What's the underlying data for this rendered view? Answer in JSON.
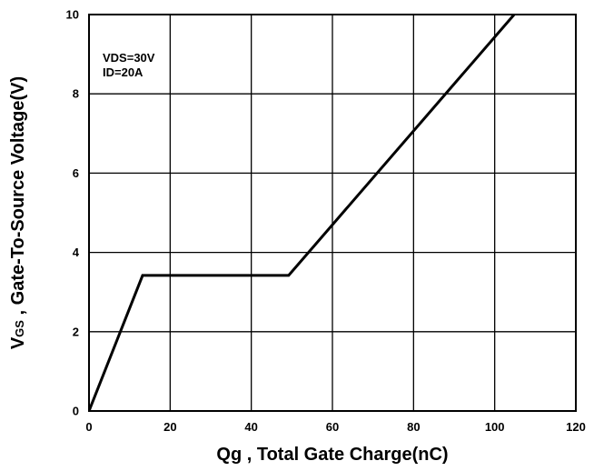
{
  "chart_data": {
    "type": "line",
    "xlabel": "Qg , Total Gate Charge(nC)",
    "ylabel": {
      "symbol": "V",
      "subscript": "GS",
      "text": " , Gate-To-Source Voltage(V)"
    },
    "xlim": [
      0,
      120
    ],
    "ylim": [
      0,
      10
    ],
    "x_ticks": [
      0,
      20,
      40,
      60,
      80,
      100,
      120
    ],
    "y_ticks": [
      0,
      2,
      4,
      6,
      8,
      10
    ],
    "grid": true,
    "annotations": [
      "VDS=30V",
      "ID=20A"
    ],
    "series": [
      {
        "x": [
          0,
          13.2,
          49.2,
          104.8
        ],
        "y": [
          0,
          3.42,
          3.42,
          10.0
        ]
      }
    ],
    "colors": {
      "line": "#000000",
      "grid": "#000000"
    }
  }
}
